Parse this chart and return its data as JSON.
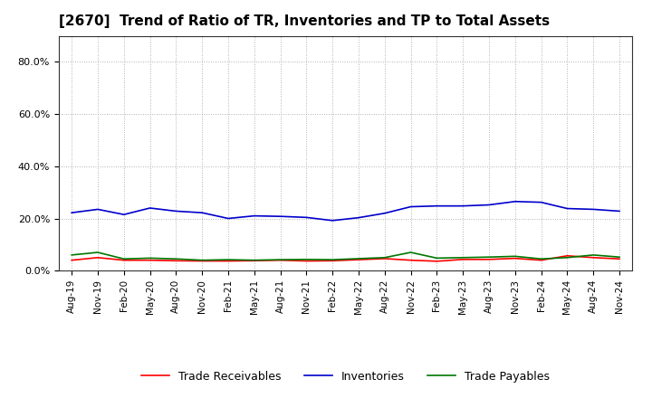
{
  "title": "[2670]  Trend of Ratio of TR, Inventories and TP to Total Assets",
  "title_fontsize": 11,
  "background_color": "#ffffff",
  "grid_color": "#999999",
  "ylim": [
    0.0,
    0.9
  ],
  "yticks": [
    0.0,
    0.2,
    0.4,
    0.6,
    0.8
  ],
  "x_labels": [
    "Aug-19",
    "Nov-19",
    "Feb-20",
    "May-20",
    "Aug-20",
    "Nov-20",
    "Feb-21",
    "May-21",
    "Aug-21",
    "Nov-21",
    "Feb-22",
    "May-22",
    "Aug-22",
    "Nov-22",
    "Feb-23",
    "May-23",
    "Aug-23",
    "Nov-23",
    "Feb-24",
    "May-24",
    "Aug-24",
    "Nov-24"
  ],
  "trade_receivables": [
    0.04,
    0.05,
    0.04,
    0.04,
    0.038,
    0.037,
    0.037,
    0.038,
    0.04,
    0.037,
    0.038,
    0.042,
    0.046,
    0.04,
    0.036,
    0.043,
    0.043,
    0.047,
    0.04,
    0.057,
    0.05,
    0.045
  ],
  "inventories": [
    0.222,
    0.235,
    0.215,
    0.24,
    0.228,
    0.222,
    0.2,
    0.21,
    0.208,
    0.204,
    0.192,
    0.203,
    0.22,
    0.245,
    0.248,
    0.248,
    0.252,
    0.265,
    0.262,
    0.238,
    0.235,
    0.228
  ],
  "trade_payables": [
    0.06,
    0.07,
    0.045,
    0.048,
    0.045,
    0.04,
    0.042,
    0.04,
    0.042,
    0.043,
    0.042,
    0.046,
    0.05,
    0.07,
    0.048,
    0.05,
    0.052,
    0.055,
    0.045,
    0.05,
    0.06,
    0.052
  ],
  "line_colors": {
    "trade_receivables": "#ff0000",
    "inventories": "#0000cc",
    "trade_payables": "#007700"
  },
  "line_width": 1.2,
  "legend_labels": [
    "Trade Receivables",
    "Inventories",
    "Trade Payables"
  ]
}
